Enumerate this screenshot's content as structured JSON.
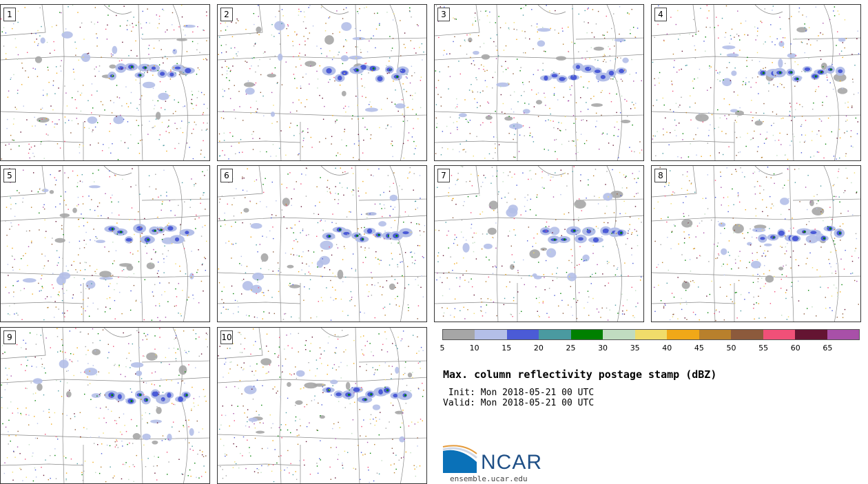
{
  "panels": [
    {
      "label": "1"
    },
    {
      "label": "2"
    },
    {
      "label": "3"
    },
    {
      "label": "4"
    },
    {
      "label": "5"
    },
    {
      "label": "6"
    },
    {
      "label": "7"
    },
    {
      "label": "8"
    },
    {
      "label": "9"
    },
    {
      "label": "10"
    }
  ],
  "colorbar": {
    "colors": [
      "#a6a6a6",
      "#b4bfe8",
      "#4b5bd6",
      "#4a9aa0",
      "#008000",
      "#c0dcc0",
      "#f0dc6a",
      "#f0a818",
      "#b8802c",
      "#8c5a3c",
      "#f05078",
      "#641432",
      "#a850a8"
    ],
    "ticks": [
      "5",
      "10",
      "15",
      "20",
      "25",
      "30",
      "35",
      "40",
      "45",
      "50",
      "55",
      "60",
      "65"
    ]
  },
  "title": "Max. column reflectivity postage stamp (dBZ)",
  "init": " Init: Mon 2018-05-21 00 UTC",
  "valid": "Valid: Mon 2018-05-21 00 UTC",
  "logo": {
    "name": "NCAR",
    "url": "ensemble.ucar.edu"
  }
}
